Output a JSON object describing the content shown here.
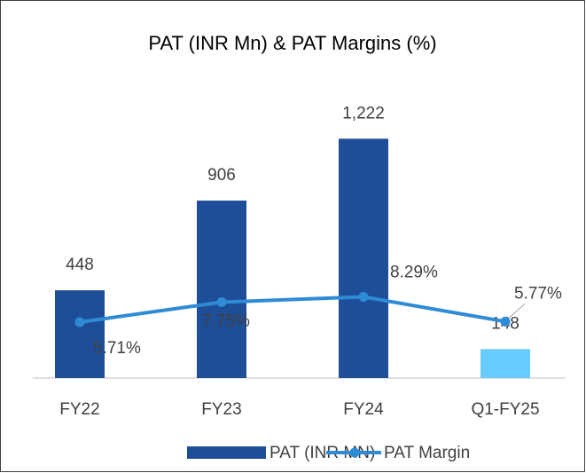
{
  "chart_data": {
    "type": "bar_line",
    "title": "PAT (INR Mn) & PAT Margins (%)",
    "categories": [
      "FY22",
      "FY23",
      "FY24",
      "Q1-FY25"
    ],
    "series": [
      {
        "name": "PAT (INR MN)",
        "type": "bar",
        "color": "#1f4e99",
        "colors": [
          "#1f4e99",
          "#1f4e99",
          "#1f4e99",
          "#66ccff"
        ],
        "values": [
          448,
          906,
          1222,
          148
        ],
        "value_labels": [
          "448",
          "906",
          "1,222",
          "148"
        ]
      },
      {
        "name": "PAT Margin",
        "type": "line",
        "axis": "y2",
        "color": "#2e8bd6",
        "values": [
          5.71,
          7.75,
          8.29,
          5.77
        ],
        "value_labels": [
          "5.71%",
          "7.75%",
          "8.29%",
          "5.77%"
        ]
      }
    ],
    "ylim": [
      0,
      1400
    ],
    "y2lim": [
      0,
      28
    ],
    "legend": "bottom"
  }
}
